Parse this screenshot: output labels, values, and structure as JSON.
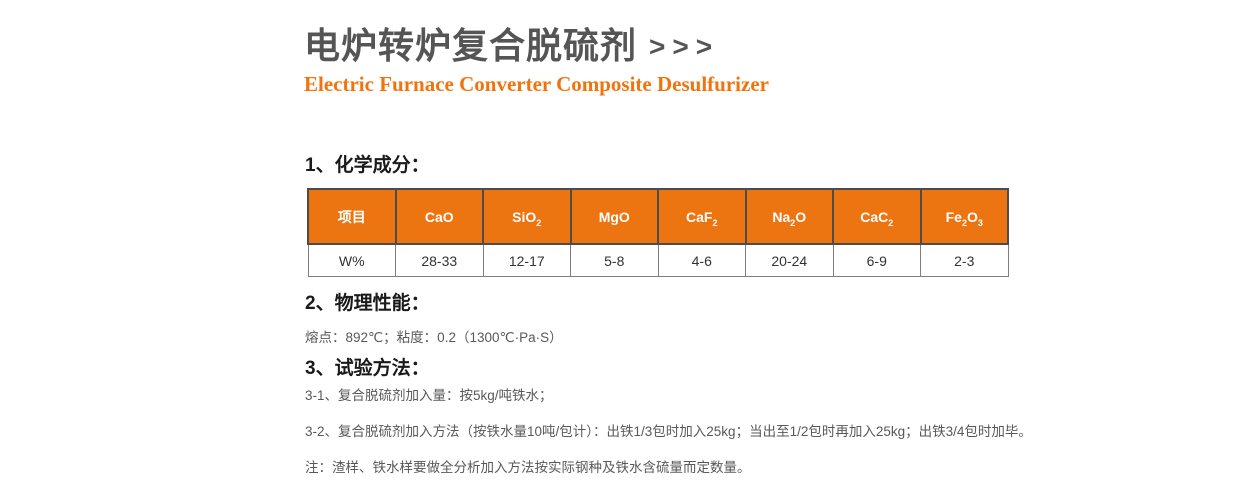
{
  "colors": {
    "accent_orange": "#ED7511",
    "subtitle_orange": "#F2730D",
    "title_gray": "#555555",
    "body_gray": "#5A5858",
    "heading_black": "#1A1A1A",
    "table_border_dark": "#4C4C4C",
    "table_border_light": "#7E7E7E"
  },
  "header": {
    "title_zh": "电炉转炉复合脱硫剂",
    "title_arrows": ">>>",
    "title_en": "Electric Furnace Converter Composite Desulfurizer"
  },
  "section_chemical": {
    "heading": "1、化学成分：",
    "table": {
      "header_cells": [
        [
          {
            "t": "项目"
          }
        ],
        [
          {
            "t": "CaO"
          }
        ],
        [
          {
            "t": "SiO"
          },
          {
            "t": "2",
            "sub": true
          }
        ],
        [
          {
            "t": "MgO"
          }
        ],
        [
          {
            "t": "CaF"
          },
          {
            "t": "2",
            "sub": true
          }
        ],
        [
          {
            "t": "Na"
          },
          {
            "t": "2",
            "sub": true
          },
          {
            "t": "O"
          }
        ],
        [
          {
            "t": "CaC"
          },
          {
            "t": "2",
            "sub": true
          }
        ],
        [
          {
            "t": "Fe"
          },
          {
            "t": "2",
            "sub": true
          },
          {
            "t": "O"
          },
          {
            "t": "3",
            "sub": true
          }
        ]
      ],
      "rows": [
        [
          "W%",
          "28-33",
          "12-17",
          "5-8",
          "4-6",
          "20-24",
          "6-9",
          "2-3"
        ]
      ]
    }
  },
  "section_physical": {
    "heading": "2、物理性能：",
    "text": "熔点：892℃；粘度：0.2（1300℃·Pa·S）"
  },
  "section_method": {
    "heading": "3、试验方法：",
    "lines": [
      "3-1、复合脱硫剂加入量：按5kg/吨铁水；",
      "3-2、复合脱硫剂加入方法（按铁水量10吨/包计）：出铁1/3包时加入25kg；当出至1/2包时再加入25kg；出铁3/4包时加毕。",
      "注：渣样、铁水样要做全分析加入方法按实际钢种及铁水含硫量而定数量。"
    ]
  }
}
